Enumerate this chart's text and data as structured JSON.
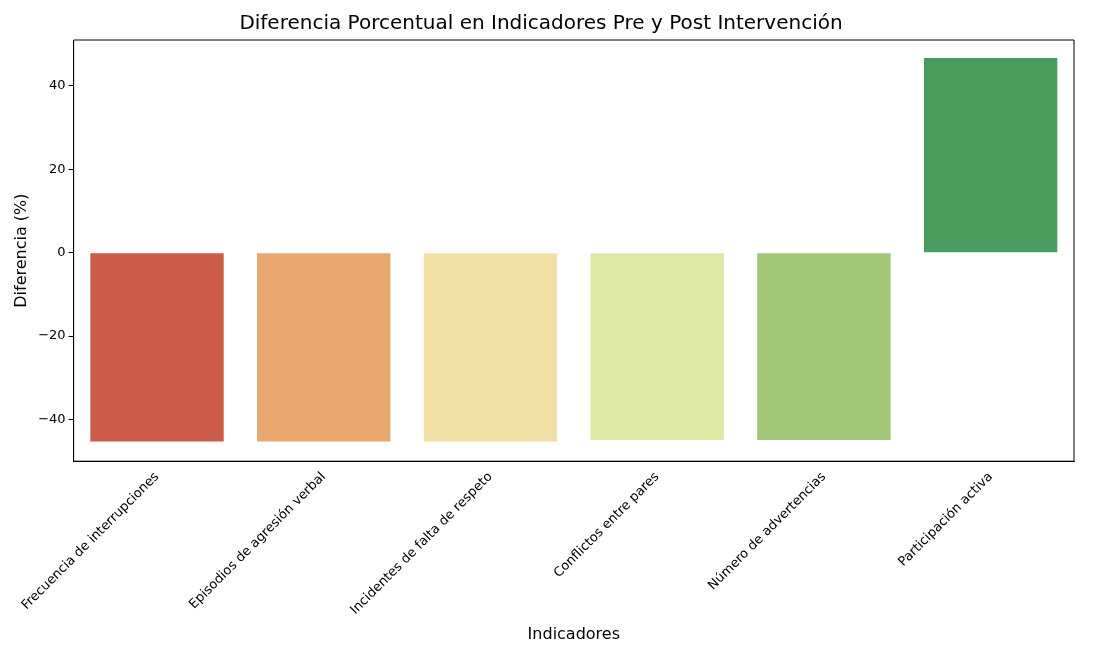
{
  "chart_data": {
    "type": "bar",
    "title": "Diferencia Porcentual en Indicadores Pre y Post Intervención",
    "xlabel": "Indicadores",
    "ylabel": "Diferencia (%)",
    "categories": [
      "Frecuencia de interrupciones",
      "Episodios de agresión verbal",
      "Incidentes de falta de respeto",
      "Conflictos entre pares",
      "Número de advertencias",
      "Participación activa"
    ],
    "values": [
      -45.3,
      -45.3,
      -45.3,
      -44.9,
      -44.9,
      46.7
    ],
    "colors": [
      "#cd5b4a",
      "#e8a76f",
      "#f2dfa5",
      "#dde8a6",
      "#a0c678",
      "#499b5e"
    ],
    "ylim": [
      -50,
      51
    ],
    "yticks": [
      -40,
      -20,
      0,
      20,
      40
    ],
    "grid": false,
    "legend": false
  }
}
